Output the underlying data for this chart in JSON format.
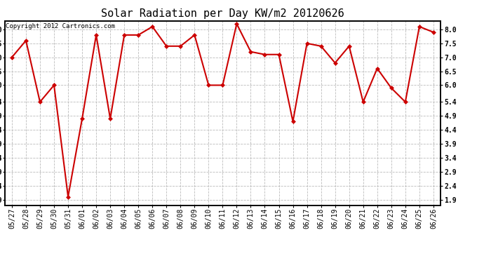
{
  "title": "Solar Radiation per Day KW/m2 20120626",
  "copyright_text": "Copyright 2012 Cartronics.com",
  "x_labels": [
    "05/27",
    "05/28",
    "05/29",
    "05/30",
    "05/31",
    "06/01",
    "06/02",
    "06/03",
    "06/04",
    "06/05",
    "06/06",
    "06/07",
    "06/08",
    "06/09",
    "06/10",
    "06/11",
    "06/12",
    "06/13",
    "06/14",
    "06/15",
    "06/16",
    "06/17",
    "06/18",
    "06/19",
    "06/20",
    "06/21",
    "06/22",
    "06/23",
    "06/24",
    "06/25",
    "06/26"
  ],
  "y_values": [
    7.0,
    7.6,
    5.4,
    6.0,
    2.0,
    4.8,
    7.8,
    4.8,
    7.8,
    7.8,
    8.1,
    7.4,
    7.4,
    7.8,
    6.0,
    6.0,
    8.2,
    7.2,
    7.1,
    7.1,
    4.7,
    7.5,
    7.4,
    6.8,
    7.4,
    5.4,
    6.6,
    5.9,
    5.4,
    8.1,
    7.9
  ],
  "line_color": "#cc0000",
  "marker": "D",
  "marker_size": 3,
  "background_color": "#ffffff",
  "plot_bg_color": "#ffffff",
  "grid_color": "#bbbbbb",
  "yticks": [
    1.9,
    2.4,
    2.9,
    3.4,
    3.9,
    4.4,
    4.9,
    5.4,
    6.0,
    6.5,
    7.0,
    7.5,
    8.0
  ],
  "ylim": [
    1.7,
    8.3
  ],
  "title_fontsize": 11,
  "tick_fontsize": 7,
  "copyright_fontsize": 6.5
}
